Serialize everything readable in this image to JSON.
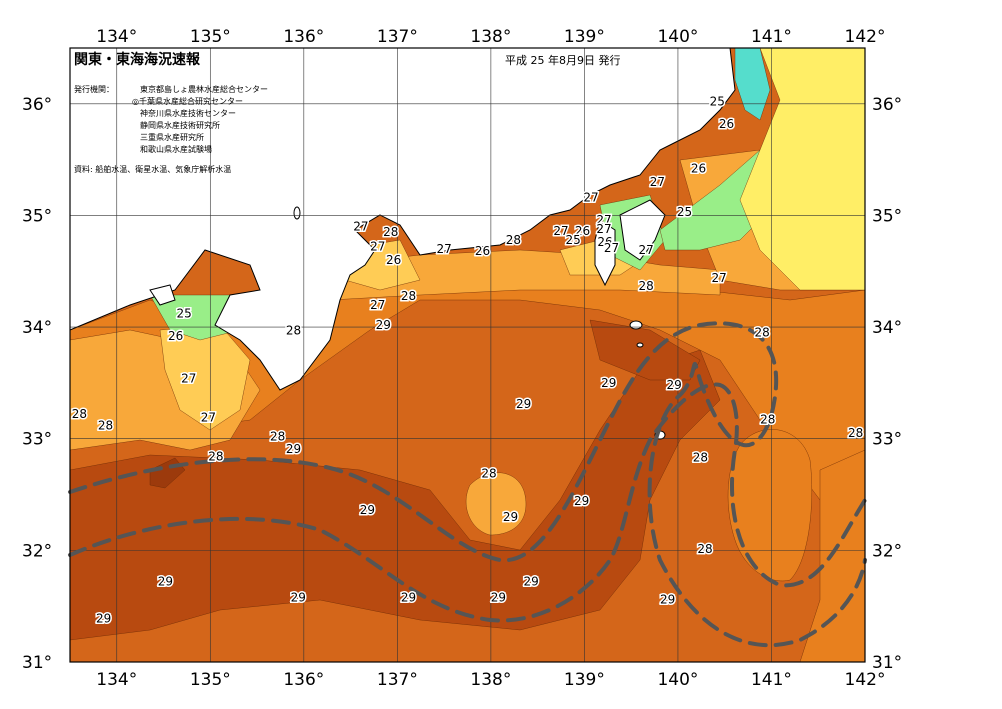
{
  "title": "関東・東海海況速報",
  "issue_date": "平成 25 年8月9日 発行",
  "issuer_heading": "発行機関：",
  "issuers": [
    "東京都島しょ農林水産総合センター",
    "◎千葉県水産総合研究センター",
    "神奈川県水産技術センター",
    "静岡県水産技術研究所",
    "三重県水産研究所",
    "和歌山県水産試験場"
  ],
  "source": "資料: 船舶水温、衛星水温、気象庁解析水温",
  "axes": {
    "lon_ticks": [
      "134°",
      "135°",
      "136°",
      "137°",
      "138°",
      "139°",
      "140°",
      "141°",
      "142°"
    ],
    "lat_ticks": [
      "36°",
      "35°",
      "34°",
      "33°",
      "32°",
      "31°"
    ]
  },
  "colors": {
    "t25": "#99ee88",
    "t26": "#ffcc55",
    "t27": "#f8a83a",
    "t28": "#e8801e",
    "t29": "#d4661a",
    "t30": "#b84a10",
    "warm_core": "#9c3a0c",
    "cold_yellow": "#ffee66",
    "cyan": "#55ddcc",
    "land": "#ffffff",
    "stream": "#555555"
  },
  "isotherm_labels": [
    {
      "t": "25",
      "lon": 140.42,
      "lat": 36.02
    },
    {
      "t": "26",
      "lon": 140.52,
      "lat": 35.82
    },
    {
      "t": "26",
      "lon": 140.22,
      "lat": 35.42
    },
    {
      "t": "27",
      "lon": 139.78,
      "lat": 35.3
    },
    {
      "t": "25",
      "lon": 140.07,
      "lat": 35.03
    },
    {
      "t": "27",
      "lon": 139.07,
      "lat": 35.16
    },
    {
      "t": "27",
      "lon": 139.21,
      "lat": 34.96
    },
    {
      "t": "26",
      "lon": 138.98,
      "lat": 34.86
    },
    {
      "t": "27",
      "lon": 139.21,
      "lat": 34.88
    },
    {
      "t": "25",
      "lon": 138.88,
      "lat": 34.78
    },
    {
      "t": "26",
      "lon": 139.22,
      "lat": 34.76
    },
    {
      "t": "27",
      "lon": 139.29,
      "lat": 34.71
    },
    {
      "t": "27",
      "lon": 138.75,
      "lat": 34.86
    },
    {
      "t": "28",
      "lon": 138.24,
      "lat": 34.78
    },
    {
      "t": "26",
      "lon": 137.91,
      "lat": 34.68
    },
    {
      "t": "27",
      "lon": 137.5,
      "lat": 34.7
    },
    {
      "t": "27",
      "lon": 136.61,
      "lat": 34.9
    },
    {
      "t": "28",
      "lon": 136.93,
      "lat": 34.85
    },
    {
      "t": "27",
      "lon": 136.79,
      "lat": 34.72
    },
    {
      "t": "26",
      "lon": 136.96,
      "lat": 34.6
    },
    {
      "t": "27",
      "lon": 139.66,
      "lat": 34.69
    },
    {
      "t": "28",
      "lon": 139.66,
      "lat": 34.37
    },
    {
      "t": "27",
      "lon": 140.44,
      "lat": 34.44
    },
    {
      "t": "28",
      "lon": 140.9,
      "lat": 33.95
    },
    {
      "t": "28",
      "lon": 137.12,
      "lat": 34.28
    },
    {
      "t": "27",
      "lon": 136.79,
      "lat": 34.2
    },
    {
      "t": "29",
      "lon": 136.85,
      "lat": 34.02
    },
    {
      "t": "28",
      "lon": 135.89,
      "lat": 33.97
    },
    {
      "t": "25",
      "lon": 134.72,
      "lat": 34.12
    },
    {
      "t": "26",
      "lon": 134.63,
      "lat": 33.92
    },
    {
      "t": "27",
      "lon": 134.77,
      "lat": 33.54
    },
    {
      "t": "27",
      "lon": 134.98,
      "lat": 33.19
    },
    {
      "t": "28",
      "lon": 133.6,
      "lat": 33.22
    },
    {
      "t": "28",
      "lon": 133.88,
      "lat": 33.12
    },
    {
      "t": "28",
      "lon": 135.72,
      "lat": 33.02
    },
    {
      "t": "29",
      "lon": 135.89,
      "lat": 32.91
    },
    {
      "t": "28",
      "lon": 135.06,
      "lat": 32.84
    },
    {
      "t": "29",
      "lon": 139.26,
      "lat": 33.5
    },
    {
      "t": "29",
      "lon": 139.96,
      "lat": 33.48
    },
    {
      "t": "29",
      "lon": 138.35,
      "lat": 33.31
    },
    {
      "t": "28",
      "lon": 140.96,
      "lat": 33.17
    },
    {
      "t": "28",
      "lon": 141.9,
      "lat": 33.05
    },
    {
      "t": "28",
      "lon": 140.24,
      "lat": 32.83
    },
    {
      "t": "28",
      "lon": 137.98,
      "lat": 32.69
    },
    {
      "t": "29",
      "lon": 138.97,
      "lat": 32.44
    },
    {
      "t": "29",
      "lon": 136.68,
      "lat": 32.36
    },
    {
      "t": "29",
      "lon": 138.21,
      "lat": 32.3
    },
    {
      "t": "28",
      "lon": 140.29,
      "lat": 32.01
    },
    {
      "t": "29",
      "lon": 134.52,
      "lat": 31.72
    },
    {
      "t": "29",
      "lon": 138.43,
      "lat": 31.72
    },
    {
      "t": "29",
      "lon": 135.94,
      "lat": 31.58
    },
    {
      "t": "29",
      "lon": 137.12,
      "lat": 31.58
    },
    {
      "t": "29",
      "lon": 138.08,
      "lat": 31.58
    },
    {
      "t": "29",
      "lon": 139.89,
      "lat": 31.56
    },
    {
      "t": "29",
      "lon": 133.86,
      "lat": 31.39
    }
  ]
}
